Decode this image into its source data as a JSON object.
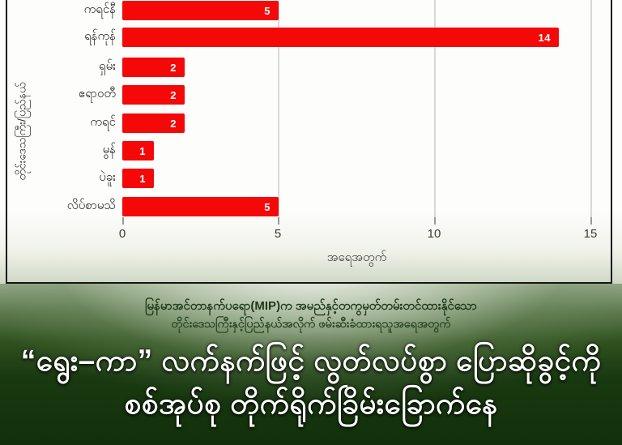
{
  "chart_data": {
    "type": "bar",
    "orientation": "horizontal",
    "title": "",
    "categories": [
      "ကရင်နီ",
      "ရန်ကုန်",
      "ရှမ်း",
      "ဧရာဝတီ",
      "ကရင်",
      "မွန်",
      "ပဲခူး",
      "လိပ်စာမသိ"
    ],
    "values": [
      5,
      14,
      2,
      2,
      2,
      1,
      1,
      5
    ],
    "value_labels": [
      "5",
      "14",
      "2",
      "2",
      "2",
      "1",
      "1",
      "5"
    ],
    "xlabel": "အရေအတွက်",
    "ylabel": "တိုင်းဒေသကြီး/ပြည်နယ်",
    "xlim": [
      0,
      15
    ],
    "xticks": [
      "0",
      "5",
      "10",
      "15"
    ],
    "grid": "vertical gridlines at 5, 10, 15",
    "legend": "none",
    "bar_color": "#f50808",
    "value_label_color": "#ffffff",
    "plot_background": "#ffffff",
    "note": "topmost bar (ကရင်နီ) is cropped by the top edge of the image"
  },
  "caption": {
    "line1": "မြန်မာအင်တာနက်ပရော(MIP)က အမည်နှင့်တကွမှတ်တမ်းတင်ထားနိုင်သော",
    "line2": "တိုင်းဒေသကြီးနှင့်ပြည်နယ်အလိုက် ဖမ်းဆီးခံထားရသူအရေအတွက်"
  },
  "headline": {
    "line1": "“ရွေး–ကာ” လက်နက်ဖြင့် လွတ်လပ်စွာ ပြောဆိုခွင့်ကို",
    "line2": "စစ်အုပ်စု တိုက်ရိုက်ခြိမ်းခြောက်နေ"
  },
  "colors": {
    "bar_red": "#f50808",
    "frame_border": "#151515",
    "band_dark_green": "#123009",
    "band_light_sage": "#d3ddcb",
    "headline_text": "#ffffff",
    "caption_text": "#1e3a1a"
  }
}
